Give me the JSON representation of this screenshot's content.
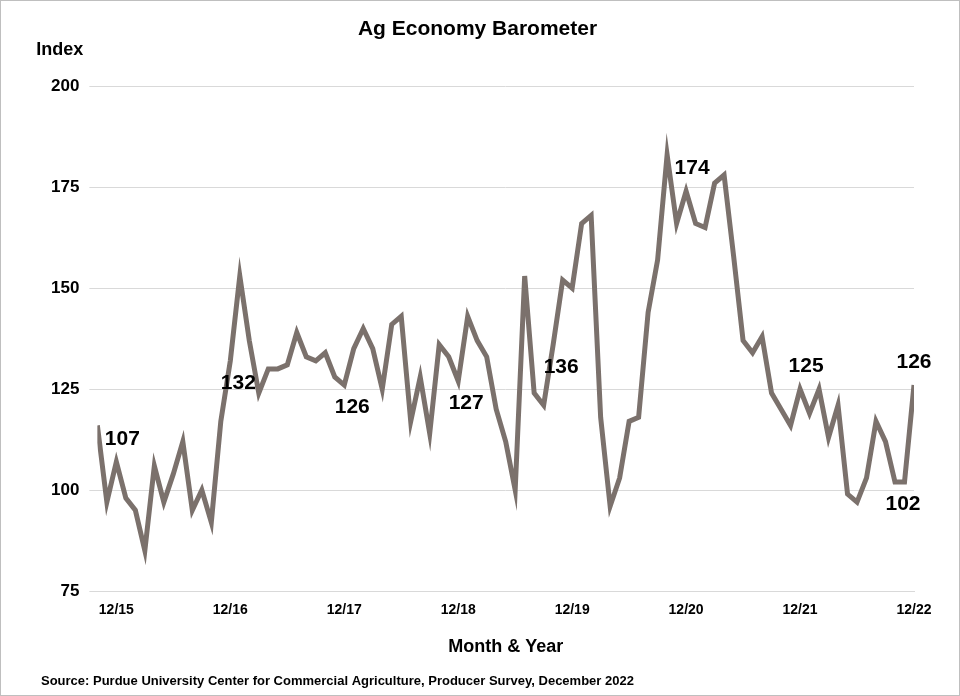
{
  "chart_data": {
    "type": "line",
    "title": "Ag Economy Barometer",
    "y_label": "Index",
    "x_label": "Month & Year",
    "source": "Source: Purdue University Center for Commercial Agriculture, Producer Survey, December 2022",
    "categories": [
      null,
      null,
      "12/15",
      null,
      null,
      null,
      null,
      null,
      null,
      null,
      null,
      null,
      null,
      null,
      "12/16",
      null,
      null,
      null,
      null,
      null,
      null,
      null,
      null,
      null,
      null,
      null,
      "12/17",
      null,
      null,
      null,
      null,
      null,
      null,
      null,
      null,
      null,
      null,
      null,
      "12/18",
      null,
      null,
      null,
      null,
      null,
      null,
      null,
      null,
      null,
      null,
      null,
      "12/19",
      null,
      null,
      null,
      null,
      null,
      null,
      null,
      null,
      null,
      null,
      null,
      "12/20",
      null,
      null,
      null,
      null,
      null,
      null,
      null,
      null,
      null,
      null,
      null,
      "12/21",
      null,
      null,
      null,
      null,
      null,
      null,
      null,
      null,
      null,
      null,
      null,
      "12/22"
    ],
    "values": [
      116,
      97,
      107,
      98,
      95,
      85,
      106,
      97,
      104,
      112,
      95,
      100,
      92,
      117,
      132,
      153,
      137,
      124,
      130,
      130,
      131,
      139,
      133,
      132,
      134,
      128,
      126,
      135,
      140,
      135,
      125,
      141,
      143,
      117,
      128,
      114,
      136,
      133,
      127,
      143,
      137,
      133,
      120,
      112,
      100,
      153,
      124,
      121,
      136,
      152,
      150,
      166,
      168,
      118,
      96,
      103,
      117,
      118,
      144,
      157,
      183,
      166,
      174,
      166,
      165,
      176,
      178,
      158,
      137,
      134,
      138,
      124,
      120,
      116,
      125,
      119,
      125,
      113,
      121,
      99,
      97,
      103,
      117,
      112,
      102,
      102,
      126
    ],
    "color": "#7b716c",
    "ylim": [
      75,
      200
    ],
    "yticks": [
      75,
      100,
      125,
      150,
      175,
      200
    ],
    "grid": true,
    "annotations": [
      {
        "text": "107",
        "index": 2
      },
      {
        "text": "132",
        "index": 14
      },
      {
        "text": "126",
        "index": 26
      },
      {
        "text": "127",
        "index": 38
      },
      {
        "text": "136",
        "index": 48
      },
      {
        "text": "174",
        "index": 62
      },
      {
        "text": "125",
        "index": 74
      },
      {
        "text": "102",
        "index": 84
      },
      {
        "text": "126",
        "index": 86
      }
    ]
  }
}
